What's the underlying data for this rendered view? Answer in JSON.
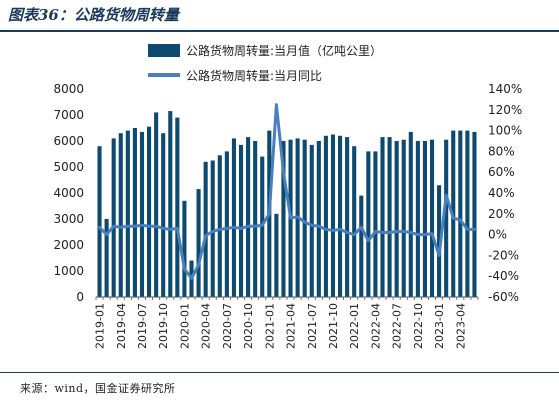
{
  "figure": {
    "title": "图表36：公路货物周转量",
    "source": "来源：wind，国金证券研究所"
  },
  "colors": {
    "bar": "#0e4a6e",
    "line": "#4a7fbf",
    "title": "#1b3a5c"
  },
  "chart_data": {
    "type": "bar",
    "x": [
      "2019-01",
      "2019-02",
      "2019-03",
      "2019-04",
      "2019-05",
      "2019-06",
      "2019-07",
      "2019-08",
      "2019-09",
      "2019-10",
      "2019-11",
      "2019-12",
      "2020-01",
      "2020-02",
      "2020-03",
      "2020-04",
      "2020-05",
      "2020-06",
      "2020-07",
      "2020-08",
      "2020-09",
      "2020-10",
      "2020-11",
      "2020-12",
      "2021-01",
      "2021-02",
      "2021-03",
      "2021-04",
      "2021-05",
      "2021-06",
      "2021-07",
      "2021-08",
      "2021-09",
      "2021-10",
      "2021-11",
      "2021-12",
      "2022-01",
      "2022-02",
      "2022-03",
      "2022-04",
      "2022-05",
      "2022-06",
      "2022-07",
      "2022-08",
      "2022-09",
      "2022-10",
      "2022-11",
      "2022-12",
      "2023-01",
      "2023-02",
      "2023-03",
      "2023-04",
      "2023-05",
      "2023-06"
    ],
    "xticks": [
      "2019-01",
      "2019-04",
      "2019-07",
      "2019-10",
      "2020-01",
      "2020-04",
      "2020-07",
      "2020-10",
      "2021-01",
      "2021-04",
      "2021-07",
      "2021-10",
      "2022-01",
      "2022-04",
      "2022-07",
      "2022-10",
      "2023-01",
      "2023-04"
    ],
    "series": [
      {
        "name": "公路货物周转量:当月值（亿吨公里）",
        "axis": "left",
        "kind": "bar",
        "values": [
          5800,
          3000,
          6100,
          6300,
          6400,
          6500,
          6350,
          6550,
          7100,
          6300,
          7150,
          6900,
          3700,
          1400,
          4150,
          5200,
          5250,
          5450,
          5600,
          6100,
          5850,
          6150,
          6000,
          5400,
          6400,
          3200,
          6000,
          6050,
          6100,
          6050,
          5850,
          6000,
          6200,
          6250,
          6200,
          6150,
          5800,
          3900,
          5600,
          5600,
          6150,
          6150,
          6000,
          6050,
          6350,
          6000,
          6000,
          6050,
          4300,
          6050,
          6400,
          6400,
          6400,
          6350
        ]
      },
      {
        "name": "公路货物周转量:当月同比",
        "axis": "right",
        "kind": "line",
        "values": [
          0.07,
          0.0,
          0.08,
          0.07,
          0.08,
          0.08,
          0.09,
          0.08,
          0.08,
          0.06,
          0.05,
          0.06,
          -0.33,
          -0.42,
          -0.29,
          -0.01,
          0.03,
          0.05,
          0.06,
          0.07,
          0.06,
          0.08,
          0.08,
          0.09,
          0.2,
          1.25,
          0.6,
          0.16,
          0.17,
          0.12,
          0.09,
          0.08,
          0.05,
          0.04,
          0.05,
          0.02,
          0.0,
          0.07,
          -0.06,
          0.03,
          0.02,
          0.02,
          0.03,
          0.03,
          0.02,
          0.0,
          0.0,
          0.01,
          -0.2,
          0.38,
          0.16,
          0.14,
          0.05,
          0.05
        ]
      }
    ],
    "ylim_left": [
      0,
      8000
    ],
    "yticks_left": [
      "0",
      "1000",
      "2000",
      "3000",
      "4000",
      "5000",
      "6000",
      "7000",
      "8000"
    ],
    "ylim_right": [
      -0.6,
      1.4
    ],
    "yticks_right": [
      "-60%",
      "-40%",
      "-20%",
      "0%",
      "20%",
      "40%",
      "60%",
      "80%",
      "100%",
      "120%",
      "140%"
    ],
    "legend_position": "top-center",
    "grid": false
  }
}
